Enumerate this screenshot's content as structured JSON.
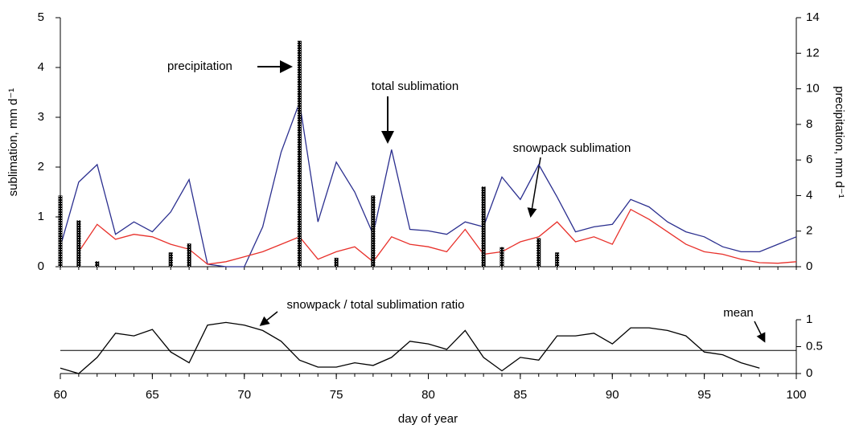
{
  "chart_data": [
    {
      "type": "line",
      "ylabel": "sublimation, mm d⁻¹",
      "y2label": "precipitation, mm d⁻¹",
      "xlim": [
        60,
        100
      ],
      "ylim": [
        0,
        5
      ],
      "yticks": [
        0,
        1,
        2,
        3,
        4,
        5
      ],
      "y2lim": [
        0,
        14
      ],
      "y2ticks": [
        0,
        2,
        4,
        6,
        8,
        10,
        12,
        14
      ],
      "series": [
        {
          "name": "total sublimation",
          "type": "line",
          "color": "#2b2f8f",
          "x": [
            60,
            61,
            62,
            63,
            64,
            65,
            66,
            67,
            68,
            69,
            70,
            71,
            72,
            73,
            74,
            75,
            76,
            77,
            78,
            79,
            80,
            81,
            82,
            83,
            84,
            85,
            86,
            87,
            88,
            89,
            90,
            91,
            92,
            93,
            94,
            95,
            96,
            97,
            98,
            99,
            100
          ],
          "values": [
            0.4,
            1.7,
            2.05,
            0.65,
            0.9,
            0.7,
            1.1,
            1.75,
            0.05,
            0,
            0,
            0.8,
            2.3,
            3.3,
            0.9,
            2.1,
            1.5,
            0.65,
            2.35,
            0.75,
            0.72,
            0.65,
            0.9,
            0.8,
            1.8,
            1.35,
            2.05,
            1.4,
            0.7,
            0.8,
            0.85,
            1.35,
            1.2,
            0.9,
            0.7,
            0.6,
            0.4,
            0.3,
            0.3,
            0.45,
            0.6
          ]
        },
        {
          "name": "snowpack sublimation",
          "type": "line",
          "color": "#e8302a",
          "x": [
            60,
            61,
            62,
            63,
            64,
            65,
            66,
            67,
            68,
            69,
            70,
            71,
            72,
            73,
            74,
            75,
            76,
            77,
            78,
            79,
            80,
            81,
            82,
            83,
            84,
            85,
            86,
            87,
            88,
            89,
            90,
            91,
            92,
            93,
            94,
            95,
            96,
            97,
            98,
            99,
            100
          ],
          "values": [
            null,
            0.3,
            0.85,
            0.55,
            0.65,
            0.6,
            0.45,
            0.35,
            0.05,
            0.1,
            0.2,
            0.3,
            0.45,
            0.6,
            0.15,
            0.3,
            0.4,
            0.1,
            0.6,
            0.45,
            0.4,
            0.3,
            0.75,
            0.25,
            0.3,
            0.5,
            0.6,
            0.9,
            0.5,
            0.6,
            0.45,
            1.15,
            0.95,
            0.7,
            0.45,
            0.3,
            0.25,
            0.15,
            0.08,
            0.07,
            0.1
          ]
        },
        {
          "name": "precipitation",
          "type": "bar",
          "axis": "y2",
          "color": "#000000",
          "x": [
            60,
            61,
            62,
            66,
            67,
            73,
            75,
            77,
            83,
            84,
            86,
            87
          ],
          "values": [
            4,
            2.6,
            0.3,
            0.8,
            1.3,
            12.7,
            0.5,
            4,
            4.5,
            1.1,
            1.6,
            0.8
          ]
        }
      ]
    },
    {
      "type": "line",
      "xlabel": "day of year",
      "xlim": [
        60,
        100
      ],
      "xticks": [
        60,
        65,
        70,
        75,
        80,
        85,
        90,
        95,
        100
      ],
      "ylim": [
        0,
        1
      ],
      "yticks": [
        0,
        0.5,
        1
      ],
      "series": [
        {
          "name": "snowpack / total sublimation ratio",
          "color": "#000000",
          "x": [
            60,
            61,
            62,
            63,
            64,
            65,
            66,
            67,
            68,
            69,
            70,
            71,
            72,
            73,
            74,
            75,
            76,
            77,
            78,
            79,
            80,
            81,
            82,
            83,
            84,
            85,
            86,
            87,
            88,
            89,
            90,
            91,
            92,
            93,
            94,
            95,
            96,
            97,
            98
          ],
          "values": [
            0.1,
            0,
            0.3,
            0.75,
            0.7,
            0.82,
            0.4,
            0.2,
            0.9,
            0.95,
            0.9,
            0.8,
            0.6,
            0.25,
            0.12,
            0.12,
            0.2,
            0.15,
            0.3,
            0.6,
            0.55,
            0.45,
            0.8,
            0.3,
            0.05,
            0.3,
            0.25,
            0.7,
            0.7,
            0.75,
            0.55,
            0.85,
            0.85,
            0.8,
            0.7,
            0.4,
            0.35,
            0.2,
            0.1
          ]
        }
      ],
      "mean": {
        "label": "mean",
        "value": 0.43
      }
    }
  ]
}
